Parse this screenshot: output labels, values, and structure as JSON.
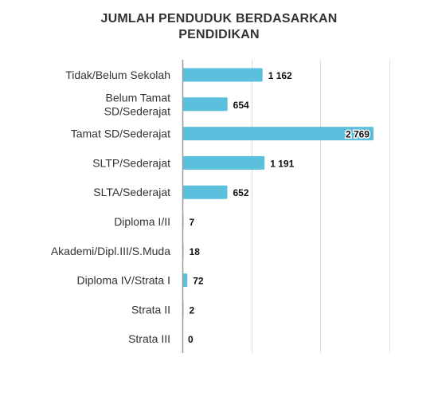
{
  "chart_data": {
    "type": "bar",
    "orientation": "horizontal",
    "title_lines": [
      "JUMLAH PENDUDUK BERDASARKAN",
      "PENDIDIKAN"
    ],
    "categories": [
      [
        "Tidak/Belum Sekolah"
      ],
      [
        "Belum Tamat",
        "SD/Sederajat"
      ],
      [
        "Tamat SD/Sederajat"
      ],
      [
        "SLTP/Sederajat"
      ],
      [
        "SLTA/Sederajat"
      ],
      [
        "Diploma I/II"
      ],
      [
        "Akademi/Dipl.III/S.Muda"
      ],
      [
        "Diploma IV/Strata I"
      ],
      [
        "Strata II"
      ],
      [
        "Strata III"
      ]
    ],
    "values": [
      1162,
      654,
      2769,
      1191,
      652,
      7,
      18,
      72,
      2,
      0
    ],
    "value_labels": [
      "1 162",
      "654",
      "2 769",
      "1 191",
      "652",
      "7",
      "18",
      "72",
      "2",
      "0"
    ],
    "xlim": [
      0,
      3000
    ],
    "x_gridlines": [
      0,
      1000,
      2000,
      3000
    ],
    "grid": true,
    "legend": "none",
    "bar_color": "#5bc0de",
    "label_color": "#333333",
    "grid_color": "#dddddd",
    "axis_color": "#999999"
  }
}
